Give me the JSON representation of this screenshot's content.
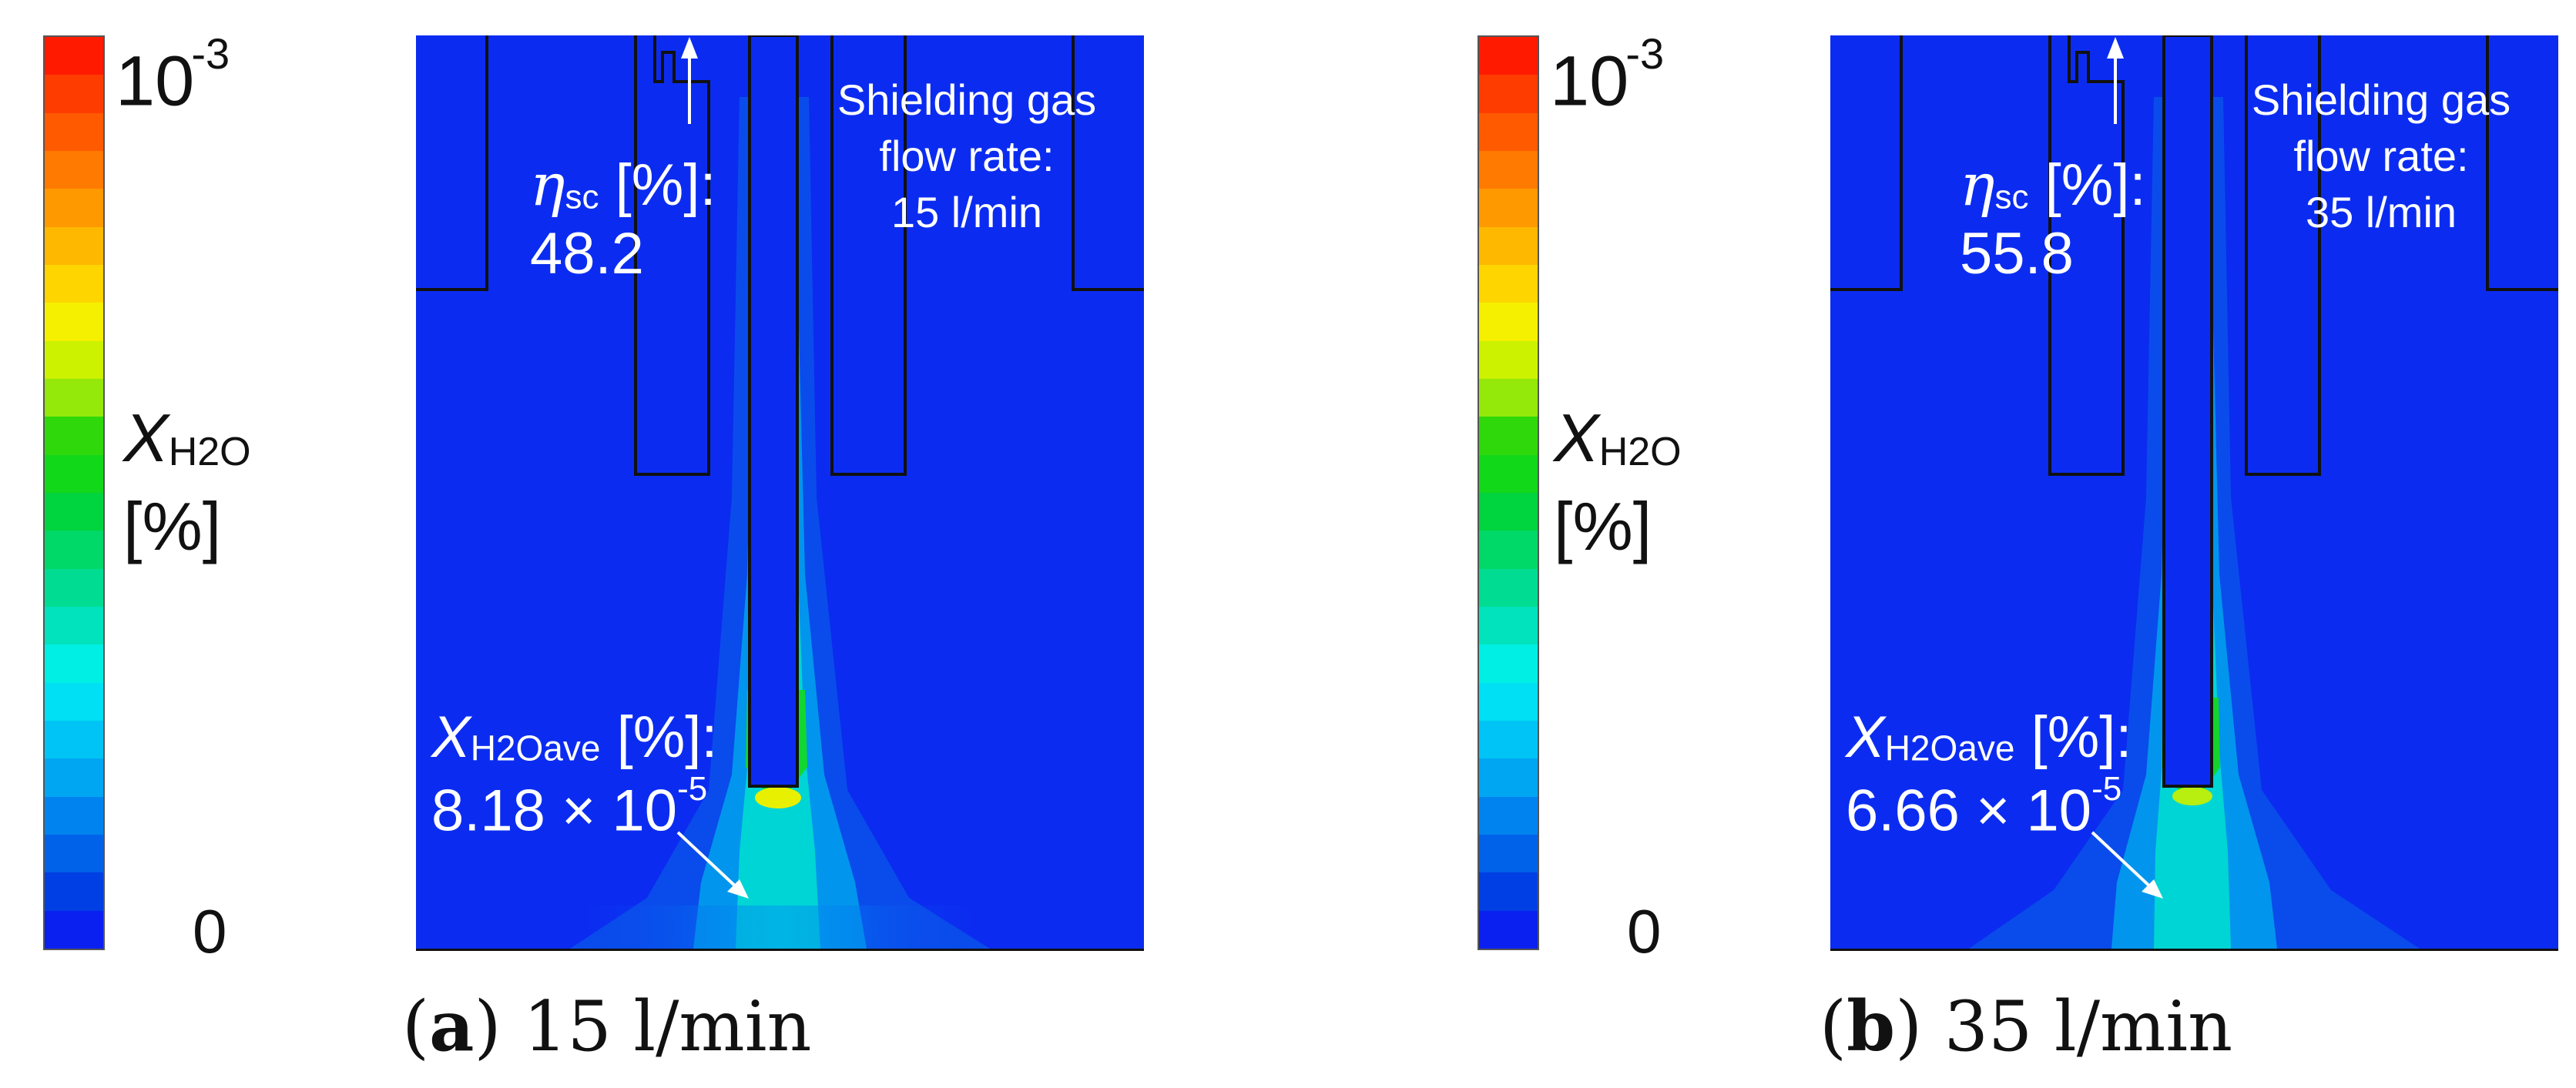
{
  "colorbar": {
    "max_base": "10",
    "max_exp": "-3",
    "min": "0",
    "variable_symbol": "X",
    "variable_sub": "H2O",
    "unit": "[%]",
    "colors": [
      "#ff1a00",
      "#ff3c00",
      "#ff5a00",
      "#ff7a00",
      "#ff9900",
      "#ffb800",
      "#ffd500",
      "#f4f000",
      "#ccf200",
      "#94e80a",
      "#2fd80a",
      "#12d81a",
      "#00d43e",
      "#00d868",
      "#00dc92",
      "#00e3bc",
      "#00efe4",
      "#00e0f5",
      "#00c4f5",
      "#00a6f2",
      "#0083ee",
      "#0062e8",
      "#003fe4",
      "#0a20f0"
    ]
  },
  "panels": [
    {
      "id": "a",
      "caption_letter": "a",
      "caption_text": "15 l/min",
      "eta_symbol": "η",
      "eta_sub": "sc",
      "eta_unit": "[%]:",
      "eta_value": "48.2",
      "flow_line1": "Shielding gas",
      "flow_line2": "flow rate:",
      "flow_line3": "15 l/min",
      "xave_symbol": "X",
      "xave_sub": "H2Oave",
      "xave_unit": "[%]:",
      "xave_mantissa": "8.18 × 10",
      "xave_exp": "-5"
    },
    {
      "id": "b",
      "caption_letter": "b",
      "caption_text": "35 l/min",
      "eta_symbol": "η",
      "eta_sub": "sc",
      "eta_unit": "[%]:",
      "eta_value": "55.8",
      "flow_line1": "Shielding gas",
      "flow_line2": "flow rate:",
      "flow_line3": "35 l/min",
      "xave_symbol": "X",
      "xave_sub": "H2Oave",
      "xave_unit": "[%]:",
      "xave_mantissa": "6.66 × 10",
      "xave_exp": "-5"
    }
  ]
}
